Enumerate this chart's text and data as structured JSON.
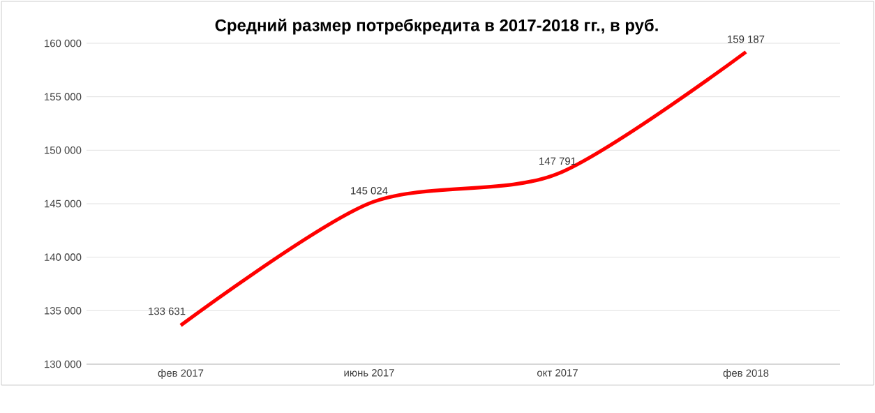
{
  "chart_data": {
    "type": "line",
    "title": "Средний размер потребкредита в 2017-2018 гг., в руб.",
    "categories": [
      "фев 2017",
      "июнь 2017",
      "окт 2017",
      "фев 2018"
    ],
    "series": [
      {
        "color": "#ff0000",
        "values": [
          133631,
          145024,
          147791,
          159187
        ],
        "value_labels": [
          "133 631",
          "145 024",
          "147 791",
          "159 187"
        ]
      }
    ],
    "ylim": [
      130000,
      160000
    ],
    "yticks": [
      {
        "value": 130000,
        "label": "130 000"
      },
      {
        "value": 135000,
        "label": "135 000"
      },
      {
        "value": 140000,
        "label": "140 000"
      },
      {
        "value": 145000,
        "label": "145 000"
      },
      {
        "value": 150000,
        "label": "150 000"
      },
      {
        "value": 155000,
        "label": "155 000"
      },
      {
        "value": 160000,
        "label": "160 000"
      }
    ],
    "grid": "y",
    "marker": "none",
    "line_style": "solid"
  }
}
